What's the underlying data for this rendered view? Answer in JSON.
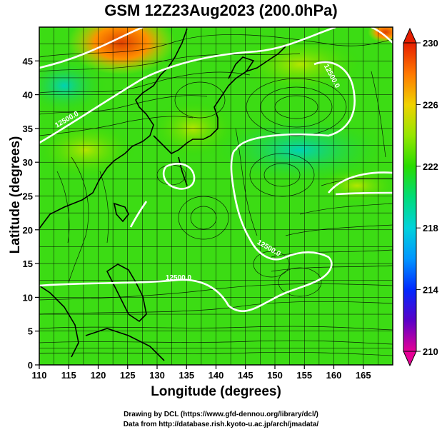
{
  "title": "GSM 12Z23Aug2023 (200.0hPa)",
  "x_axis": {
    "label": "Longitude (degrees)",
    "ticks": [
      "110",
      "115",
      "120",
      "125",
      "130",
      "135",
      "140",
      "145",
      "150",
      "155",
      "160",
      "165"
    ],
    "range": [
      110,
      170
    ]
  },
  "y_axis": {
    "label": "Latitude  (degrees)",
    "ticks": [
      "0",
      "5",
      "10",
      "15",
      "20",
      "25",
      "30",
      "35",
      "40",
      "45"
    ],
    "range": [
      0,
      50
    ]
  },
  "colorbar": {
    "ticks": [
      "230",
      "226",
      "222",
      "218",
      "214",
      "210"
    ],
    "min": 210,
    "max": 230,
    "colors": [
      "#e60096",
      "#3200d2",
      "#0050ff",
      "#00c8ff",
      "#00e6a0",
      "#32dc00",
      "#b4e600",
      "#ffc800",
      "#ff6400",
      "#e60000"
    ]
  },
  "contours": [
    {
      "label": "12500.0"
    },
    {
      "label": "12500.0"
    },
    {
      "label": "12500.0"
    },
    {
      "label": "12500.0"
    }
  ],
  "credits": {
    "line1": "Drawing by DCL (https://www.gfd-dennou.org/library/dcl/)",
    "line2": "Data from http://database.rish.kyoto-u.ac.jp/arch/jmadata/"
  }
}
